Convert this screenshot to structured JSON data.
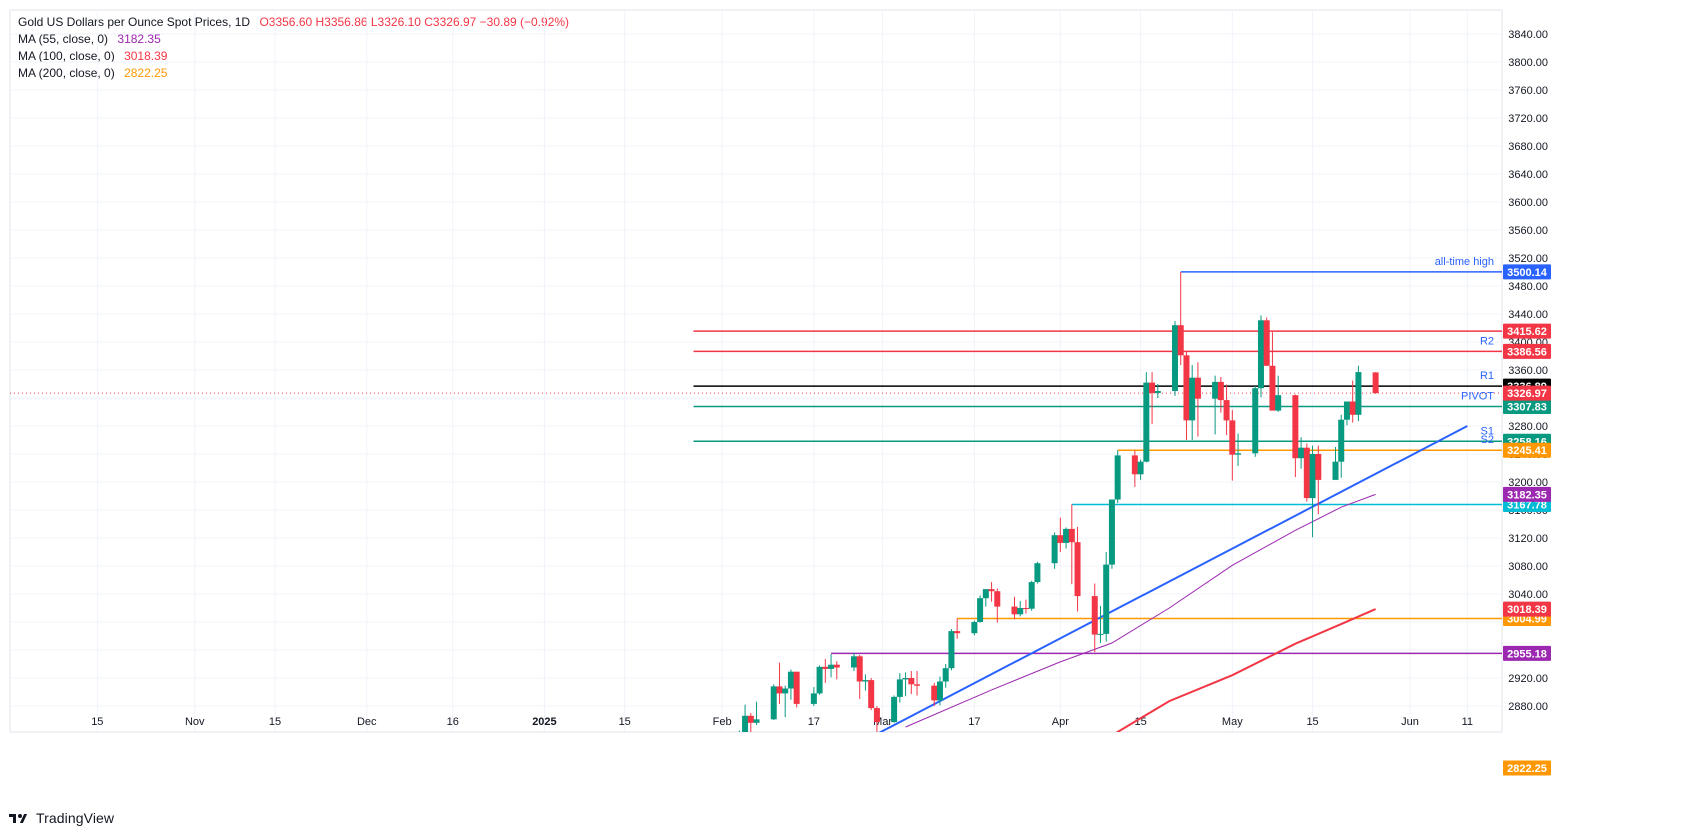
{
  "header": {
    "title": "Gold US Dollars per Ounce Spot Prices, 1D",
    "ohlc_text": "O3356.60  H3356.86  L3326.10  C3326.97  −30.89 (−0.92%)"
  },
  "indicators": [
    {
      "label": "MA (55, close, 0)",
      "value": "3182.35",
      "color": "#9c27b0"
    },
    {
      "label": "MA (100, close, 0)",
      "value": "3018.39",
      "color": "#f23645"
    },
    {
      "label": "MA (200, close, 0)",
      "value": "2822.25",
      "color": "#ff9800"
    }
  ],
  "branding": {
    "name": "TradingView"
  },
  "chart_data": {
    "type": "candlestick",
    "ylim": [
      2840,
      3840
    ],
    "y_ticks": [
      2880,
      2920,
      2960,
      3000,
      3040,
      3080,
      3120,
      3160,
      3200,
      3240,
      3280,
      3320,
      3360,
      3400,
      3440,
      3480,
      3520,
      3560,
      3600,
      3640,
      3680,
      3720,
      3760,
      3800,
      3840
    ],
    "x_tick_labels": [
      {
        "label": "15",
        "date": "2024-10-15"
      },
      {
        "label": "Nov",
        "date": "2024-11-01"
      },
      {
        "label": "15",
        "date": "2024-11-15"
      },
      {
        "label": "Dec",
        "date": "2024-12-01"
      },
      {
        "label": "16",
        "date": "2024-12-16"
      },
      {
        "label": "2025",
        "date": "2025-01-01"
      },
      {
        "label": "15",
        "date": "2025-01-15"
      },
      {
        "label": "Feb",
        "date": "2025-02-01"
      },
      {
        "label": "17",
        "date": "2025-02-17"
      },
      {
        "label": "Mar",
        "date": "2025-03-01"
      },
      {
        "label": "17",
        "date": "2025-03-17"
      },
      {
        "label": "Apr",
        "date": "2025-04-01"
      },
      {
        "label": "15",
        "date": "2025-04-15"
      },
      {
        "label": "May",
        "date": "2025-05-01"
      },
      {
        "label": "15",
        "date": "2025-05-15"
      },
      {
        "label": "Jun",
        "date": "2025-06-01"
      },
      {
        "label": "11",
        "date": "2025-06-11"
      }
    ],
    "x_range": [
      "2024-10-05",
      "2025-06-16"
    ],
    "candles": [
      {
        "d": "2025-02-03",
        "o": 2797,
        "h": 2830,
        "l": 2781,
        "c": 2815
      },
      {
        "d": "2025-02-04",
        "o": 2815,
        "h": 2845,
        "l": 2812,
        "c": 2842
      },
      {
        "d": "2025-02-05",
        "o": 2842,
        "h": 2882,
        "l": 2838,
        "c": 2866
      },
      {
        "d": "2025-02-06",
        "o": 2866,
        "h": 2870,
        "l": 2834,
        "c": 2856
      },
      {
        "d": "2025-02-07",
        "o": 2856,
        "h": 2886,
        "l": 2853,
        "c": 2861
      },
      {
        "d": "2025-02-10",
        "o": 2861,
        "h": 2911,
        "l": 2860,
        "c": 2908
      },
      {
        "d": "2025-02-11",
        "o": 2908,
        "h": 2942,
        "l": 2883,
        "c": 2898
      },
      {
        "d": "2025-02-12",
        "o": 2898,
        "h": 2909,
        "l": 2864,
        "c": 2905
      },
      {
        "d": "2025-02-13",
        "o": 2905,
        "h": 2932,
        "l": 2889,
        "c": 2929
      },
      {
        "d": "2025-02-14",
        "o": 2929,
        "h": 2929,
        "l": 2878,
        "c": 2883
      },
      {
        "d": "2025-02-17",
        "o": 2883,
        "h": 2907,
        "l": 2880,
        "c": 2898
      },
      {
        "d": "2025-02-18",
        "o": 2898,
        "h": 2938,
        "l": 2896,
        "c": 2936
      },
      {
        "d": "2025-02-19",
        "o": 2936,
        "h": 2947,
        "l": 2913,
        "c": 2933
      },
      {
        "d": "2025-02-20",
        "o": 2933,
        "h": 2954,
        "l": 2921,
        "c": 2939
      },
      {
        "d": "2025-02-21",
        "o": 2939,
        "h": 2944,
        "l": 2918,
        "c": 2935
      },
      {
        "d": "2025-02-24",
        "o": 2935,
        "h": 2956,
        "l": 2930,
        "c": 2951
      },
      {
        "d": "2025-02-25",
        "o": 2951,
        "h": 2953,
        "l": 2890,
        "c": 2915
      },
      {
        "d": "2025-02-26",
        "o": 2915,
        "h": 2925,
        "l": 2902,
        "c": 2917
      },
      {
        "d": "2025-02-27",
        "o": 2917,
        "h": 2920,
        "l": 2874,
        "c": 2877
      },
      {
        "d": "2025-02-28",
        "o": 2877,
        "h": 2880,
        "l": 2832,
        "c": 2857
      },
      {
        "d": "2025-03-03",
        "o": 2857,
        "h": 2895,
        "l": 2856,
        "c": 2893
      },
      {
        "d": "2025-03-04",
        "o": 2893,
        "h": 2927,
        "l": 2885,
        "c": 2918
      },
      {
        "d": "2025-03-05",
        "o": 2918,
        "h": 2928,
        "l": 2894,
        "c": 2920
      },
      {
        "d": "2025-03-06",
        "o": 2920,
        "h": 2930,
        "l": 2897,
        "c": 2911
      },
      {
        "d": "2025-03-07",
        "o": 2911,
        "h": 2930,
        "l": 2895,
        "c": 2909
      },
      {
        "d": "2025-03-10",
        "o": 2909,
        "h": 2913,
        "l": 2880,
        "c": 2888
      },
      {
        "d": "2025-03-11",
        "o": 2888,
        "h": 2922,
        "l": 2881,
        "c": 2915
      },
      {
        "d": "2025-03-12",
        "o": 2915,
        "h": 2940,
        "l": 2906,
        "c": 2934
      },
      {
        "d": "2025-03-13",
        "o": 2934,
        "h": 2990,
        "l": 2931,
        "c": 2987
      },
      {
        "d": "2025-03-14",
        "o": 2987,
        "h": 3005,
        "l": 2976,
        "c": 2984
      },
      {
        "d": "2025-03-17",
        "o": 2984,
        "h": 3002,
        "l": 2981,
        "c": 3000
      },
      {
        "d": "2025-03-18",
        "o": 3000,
        "h": 3038,
        "l": 2999,
        "c": 3034
      },
      {
        "d": "2025-03-19",
        "o": 3034,
        "h": 3045,
        "l": 3022,
        "c": 3047
      },
      {
        "d": "2025-03-20",
        "o": 3047,
        "h": 3057,
        "l": 3029,
        "c": 3044
      },
      {
        "d": "2025-03-21",
        "o": 3044,
        "h": 3048,
        "l": 2999,
        "c": 3022
      },
      {
        "d": "2025-03-24",
        "o": 3022,
        "h": 3036,
        "l": 3004,
        "c": 3011
      },
      {
        "d": "2025-03-25",
        "o": 3011,
        "h": 3030,
        "l": 3008,
        "c": 3020
      },
      {
        "d": "2025-03-26",
        "o": 3020,
        "h": 3032,
        "l": 3012,
        "c": 3019
      },
      {
        "d": "2025-03-27",
        "o": 3019,
        "h": 3059,
        "l": 3016,
        "c": 3057
      },
      {
        "d": "2025-03-28",
        "o": 3057,
        "h": 3086,
        "l": 3055,
        "c": 3084
      },
      {
        "d": "2025-03-31",
        "o": 3084,
        "h": 3128,
        "l": 3076,
        "c": 3124
      },
      {
        "d": "2025-04-01",
        "o": 3124,
        "h": 3149,
        "l": 3100,
        "c": 3113
      },
      {
        "d": "2025-04-02",
        "o": 3113,
        "h": 3135,
        "l": 3105,
        "c": 3133
      },
      {
        "d": "2025-04-03",
        "o": 3133,
        "h": 3168,
        "l": 3054,
        "c": 3114
      },
      {
        "d": "2025-04-04",
        "o": 3114,
        "h": 3136,
        "l": 3015,
        "c": 3037
      },
      {
        "d": "2025-04-07",
        "o": 3037,
        "h": 3055,
        "l": 2957,
        "c": 2982
      },
      {
        "d": "2025-04-08",
        "o": 2982,
        "h": 3023,
        "l": 2970,
        "c": 2983
      },
      {
        "d": "2025-04-09",
        "o": 2983,
        "h": 3100,
        "l": 2972,
        "c": 3082
      },
      {
        "d": "2025-04-10",
        "o": 3082,
        "h": 3175,
        "l": 3076,
        "c": 3175
      },
      {
        "d": "2025-04-11",
        "o": 3175,
        "h": 3245,
        "l": 3170,
        "c": 3238
      },
      {
        "d": "2025-04-14",
        "o": 3238,
        "h": 3245,
        "l": 3193,
        "c": 3211
      },
      {
        "d": "2025-04-15",
        "o": 3211,
        "h": 3232,
        "l": 3203,
        "c": 3229
      },
      {
        "d": "2025-04-16",
        "o": 3229,
        "h": 3357,
        "l": 3228,
        "c": 3342
      },
      {
        "d": "2025-04-17",
        "o": 3342,
        "h": 3357,
        "l": 3283,
        "c": 3327
      },
      {
        "d": "2025-04-18",
        "o": 3327,
        "h": 3340,
        "l": 3320,
        "c": 3330
      },
      {
        "d": "2025-04-21",
        "o": 3330,
        "h": 3430,
        "l": 3323,
        "c": 3424
      },
      {
        "d": "2025-04-22",
        "o": 3424,
        "h": 3500,
        "l": 3367,
        "c": 3381
      },
      {
        "d": "2025-04-23",
        "o": 3381,
        "h": 3386,
        "l": 3260,
        "c": 3288
      },
      {
        "d": "2025-04-24",
        "o": 3288,
        "h": 3367,
        "l": 3260,
        "c": 3349
      },
      {
        "d": "2025-04-25",
        "o": 3349,
        "h": 3371,
        "l": 3265,
        "c": 3319
      },
      {
        "d": "2025-04-28",
        "o": 3319,
        "h": 3352,
        "l": 3268,
        "c": 3343
      },
      {
        "d": "2025-04-29",
        "o": 3343,
        "h": 3350,
        "l": 3299,
        "c": 3317
      },
      {
        "d": "2025-04-30",
        "o": 3317,
        "h": 3339,
        "l": 3267,
        "c": 3288
      },
      {
        "d": "2025-05-01",
        "o": 3288,
        "h": 3303,
        "l": 3202,
        "c": 3239
      },
      {
        "d": "2025-05-02",
        "o": 3239,
        "h": 3269,
        "l": 3223,
        "c": 3241
      },
      {
        "d": "2025-05-05",
        "o": 3241,
        "h": 3337,
        "l": 3236,
        "c": 3334
      },
      {
        "d": "2025-05-06",
        "o": 3334,
        "h": 3438,
        "l": 3321,
        "c": 3431
      },
      {
        "d": "2025-05-07",
        "o": 3431,
        "h": 3435,
        "l": 3366,
        "c": 3366
      },
      {
        "d": "2025-05-08",
        "o": 3366,
        "h": 3414,
        "l": 3305,
        "c": 3302
      },
      {
        "d": "2025-05-09",
        "o": 3302,
        "h": 3352,
        "l": 3300,
        "c": 3324
      },
      {
        "d": "2025-05-12",
        "o": 3324,
        "h": 3325,
        "l": 3207,
        "c": 3234
      },
      {
        "d": "2025-05-13",
        "o": 3234,
        "h": 3264,
        "l": 3219,
        "c": 3249
      },
      {
        "d": "2025-05-14",
        "o": 3249,
        "h": 3255,
        "l": 3172,
        "c": 3177
      },
      {
        "d": "2025-05-15",
        "o": 3177,
        "h": 3252,
        "l": 3121,
        "c": 3240
      },
      {
        "d": "2025-05-16",
        "o": 3240,
        "h": 3252,
        "l": 3154,
        "c": 3203
      },
      {
        "d": "2025-05-19",
        "o": 3203,
        "h": 3250,
        "l": 3206,
        "c": 3229
      },
      {
        "d": "2025-05-20",
        "o": 3229,
        "h": 3296,
        "l": 3206,
        "c": 3289
      },
      {
        "d": "2025-05-21",
        "o": 3289,
        "h": 3315,
        "l": 3281,
        "c": 3315
      },
      {
        "d": "2025-05-22",
        "o": 3315,
        "h": 3345,
        "l": 3285,
        "c": 3296
      },
      {
        "d": "2025-05-23",
        "o": 3296,
        "h": 3366,
        "l": 3287,
        "c": 3357
      },
      {
        "d": "2025-05-26",
        "o": 3356.6,
        "h": 3356.86,
        "l": 3326.1,
        "c": 3326.97
      }
    ],
    "moving_averages": [
      {
        "name": "MA (55, close, 0)",
        "color": "#9c27b0",
        "points": [
          [
            "2025-03-05",
            2850
          ],
          [
            "2025-03-20",
            2903
          ],
          [
            "2025-04-01",
            2943
          ],
          [
            "2025-04-10",
            2970
          ],
          [
            "2025-04-20",
            3020
          ],
          [
            "2025-05-01",
            3081
          ],
          [
            "2025-05-12",
            3131
          ],
          [
            "2025-05-20",
            3164
          ],
          [
            "2025-05-26",
            3182.35
          ]
        ]
      },
      {
        "name": "MA (100, close, 0)",
        "color": "#f23645",
        "points": [
          [
            "2025-04-10",
            2838
          ],
          [
            "2025-04-20",
            2887
          ],
          [
            "2025-05-01",
            2924
          ],
          [
            "2025-05-12",
            2969
          ],
          [
            "2025-05-20",
            2997
          ],
          [
            "2025-05-26",
            3018.39
          ]
        ]
      }
    ],
    "trendline": {
      "color": "#2962ff",
      "from": [
        "2025-02-28",
        2840
      ],
      "to": [
        "2025-06-11",
        3280
      ]
    },
    "levels": [
      {
        "label": "all-time high",
        "value": 3500.14,
        "tag": "3500.14",
        "color": "#2962ff",
        "start": "2025-04-22",
        "tag_bg": "#2962ff"
      },
      {
        "label": "",
        "value": 3415.62,
        "tag": "3415.62",
        "color": "#f23645",
        "start": "2025-01-27",
        "tag_bg": "#f23645"
      },
      {
        "label": "R2",
        "value": 3386.56,
        "tag": "3386.56",
        "color": "#f23645",
        "start": "2025-01-27",
        "tag_bg": "#f23645"
      },
      {
        "label": "R1",
        "value": 3336.89,
        "tag": "3336.89",
        "color": "#000000",
        "start": "2025-01-27",
        "tag_bg": "#000000"
      },
      {
        "label": "PIVOT",
        "value": 3307.83,
        "tag": "3307.83",
        "color": "#089981",
        "start": "2025-01-27",
        "tag_bg": "#089981"
      },
      {
        "label": "S1",
        "value": 3258.16,
        "tag": "3258.16",
        "color": "#089981",
        "start": "2025-01-27",
        "tag_bg": "#089981"
      },
      {
        "label": "S2",
        "value": 3245.41,
        "tag": "3245.41",
        "color": "#ff9800",
        "start": "2025-04-11",
        "tag_bg": "#ff9800"
      },
      {
        "label": "",
        "value": 3167.78,
        "tag": "3167.78",
        "color": "#00bcd4",
        "start": "2025-04-03",
        "tag_bg": "#00bcd4"
      },
      {
        "label": "",
        "value": 3004.99,
        "tag": "3004.99",
        "color": "#ff9800",
        "start": "2025-03-14",
        "tag_bg": "#ff9800"
      },
      {
        "label": "",
        "value": 2955.18,
        "tag": "2955.18",
        "color": "#9c27b0",
        "start": "2025-02-20",
        "tag_bg": "#9c27b0"
      }
    ],
    "price_tags": [
      {
        "value": 3326.97,
        "tag": "3326.97",
        "bg": "#f23645",
        "dotted_line": true
      },
      {
        "value": 3182.35,
        "tag": "3182.35",
        "bg": "#9c27b0"
      },
      {
        "value": 3018.39,
        "tag": "3018.39",
        "bg": "#f23645"
      },
      {
        "value": 2822.25,
        "tag": "2822.25",
        "bg": "#ff9800",
        "pinned_bottom": true
      }
    ],
    "colors": {
      "up": "#089981",
      "down": "#f23645",
      "grid": "#f0f3fa",
      "axis_text": "#131722"
    }
  }
}
